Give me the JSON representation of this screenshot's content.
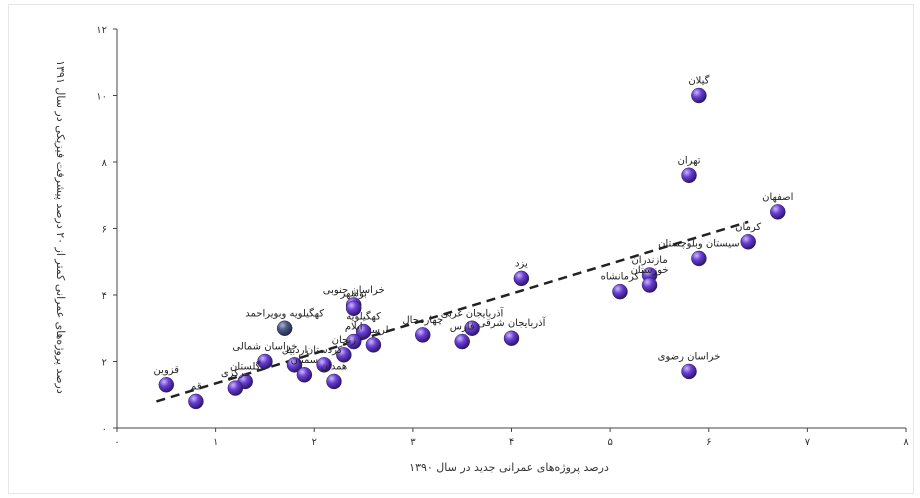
{
  "chart_data": {
    "type": "scatter",
    "title": "",
    "xlabel": "درصد پروژه‌های عمرانی جدید در سال ۱۳۹۰",
    "ylabel": "درصد پروژه‌های عمرانی کمتر از ۲۰ درصد پیشرفت فیزیکی در سال ۱۳۹۱",
    "xlim": [
      0,
      8
    ],
    "ylim": [
      0,
      12
    ],
    "x_ticks": [
      0,
      1,
      2,
      3,
      4,
      5,
      6,
      7,
      8
    ],
    "y_ticks": [
      0,
      2,
      4,
      6,
      8,
      10,
      12
    ],
    "x_tick_labels": [
      "۰",
      "۱",
      "۲",
      "۳",
      "۴",
      "۵",
      "۶",
      "۷",
      "۸"
    ],
    "y_tick_labels": [
      "۰",
      "۲",
      "۴",
      "۶",
      "۸",
      "۱۰",
      "۱۲"
    ],
    "grid": false,
    "legend": "none",
    "marker_color": "#6a3fd1",
    "marker_color_special": "#4a5a86",
    "trendline": {
      "style": "dashed",
      "x": [
        0.4,
        6.4
      ],
      "y": [
        0.8,
        6.2
      ]
    },
    "points": [
      {
        "label": "گیلان",
        "x": 5.9,
        "y": 10.0
      },
      {
        "label": "تهران",
        "x": 5.8,
        "y": 7.6
      },
      {
        "label": "اصفهان",
        "x": 6.7,
        "y": 6.5
      },
      {
        "label": "کرمان",
        "x": 6.4,
        "y": 5.6
      },
      {
        "label": "سیستان وبلوچستان",
        "x": 5.9,
        "y": 5.1
      },
      {
        "label": "مازندران",
        "x": 5.4,
        "y": 4.6
      },
      {
        "label": "خوزستان",
        "x": 5.4,
        "y": 4.3
      },
      {
        "label": "کرمانشاه",
        "x": 5.1,
        "y": 4.1
      },
      {
        "label": "یزد",
        "x": 4.1,
        "y": 4.5
      },
      {
        "label": "خراسان رضوی",
        "x": 5.8,
        "y": 1.7
      },
      {
        "label": "آذربایجان شرقی",
        "x": 4.0,
        "y": 2.7
      },
      {
        "label": "آذربایجان غربی",
        "x": 3.6,
        "y": 3.0
      },
      {
        "label": "فارس",
        "x": 3.5,
        "y": 2.6
      },
      {
        "label": "چهارمحال",
        "x": 3.1,
        "y": 2.8
      },
      {
        "label": "لرستان",
        "x": 2.6,
        "y": 2.5
      },
      {
        "label": "کهگیلویه",
        "x": 2.5,
        "y": 2.9
      },
      {
        "label": "خراسان جنوبی",
        "x": 2.4,
        "y": 3.7
      },
      {
        "label": "بوشهر",
        "x": 2.4,
        "y": 3.6
      },
      {
        "label": "ایلام",
        "x": 2.4,
        "y": 2.6
      },
      {
        "label": "زنجان",
        "x": 2.3,
        "y": 2.2
      },
      {
        "label": "کردستان",
        "x": 2.1,
        "y": 1.9
      },
      {
        "label": "همدان",
        "x": 2.2,
        "y": 1.4
      },
      {
        "label": "کهگیلویه وبویراحمد",
        "x": 1.7,
        "y": 3.0,
        "special": true
      },
      {
        "label": "خراسان شمالی",
        "x": 1.5,
        "y": 2.0
      },
      {
        "label": "اردبیل",
        "x": 1.8,
        "y": 1.9
      },
      {
        "label": "سمنان",
        "x": 1.9,
        "y": 1.6
      },
      {
        "label": "گلستان",
        "x": 1.3,
        "y": 1.4
      },
      {
        "label": "مرکزی",
        "x": 1.2,
        "y": 1.2
      },
      {
        "label": "قم",
        "x": 0.8,
        "y": 0.8
      },
      {
        "label": "قزوین",
        "x": 0.5,
        "y": 1.3
      }
    ]
  }
}
